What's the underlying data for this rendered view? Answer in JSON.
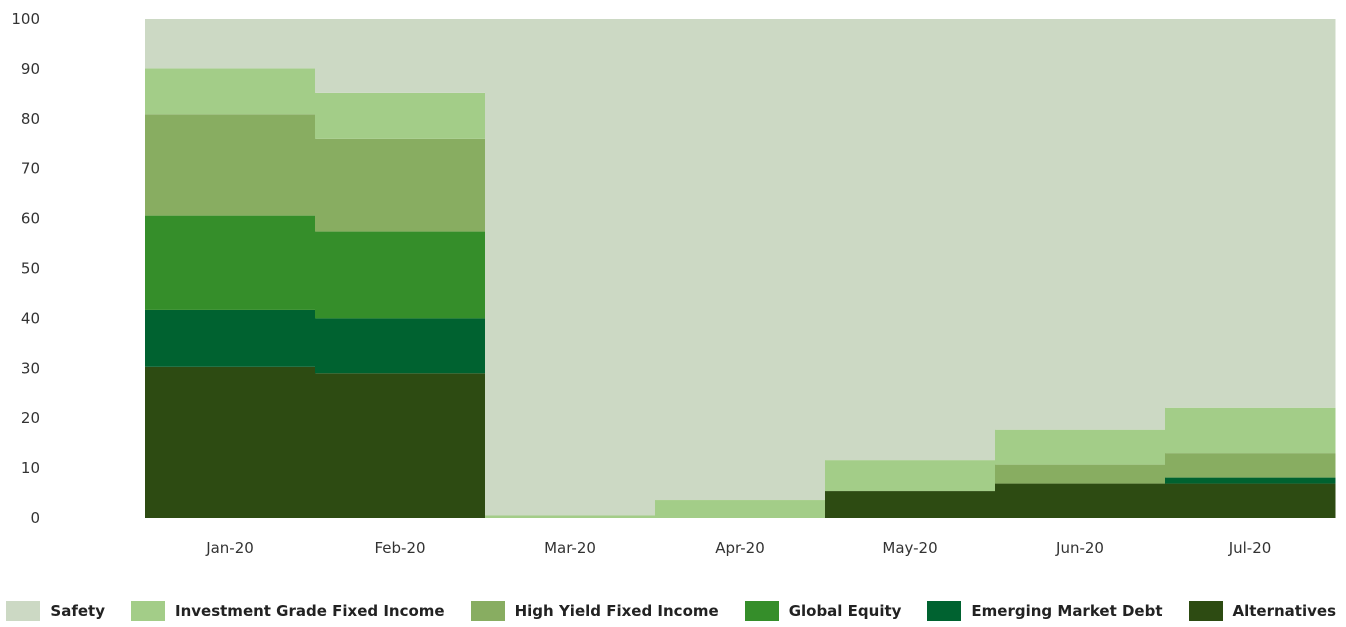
{
  "chart_data": {
    "type": "bar",
    "stacked": true,
    "categories": [
      "Jan-20",
      "Feb-20",
      "Mar-20",
      "Apr-20",
      "May-20",
      "Jun-20",
      "Jul-20"
    ],
    "ylim": [
      0,
      100
    ],
    "yticks": [
      0,
      10,
      20,
      30,
      40,
      50,
      60,
      70,
      80,
      90,
      100
    ],
    "series": [
      {
        "name": "Alternatives",
        "color": "#2d4b12",
        "values": [
          30.3,
          29,
          0,
          0,
          5.4,
          6.9,
          6.9
        ]
      },
      {
        "name": "Emerging Market Debt",
        "color": "#006230",
        "values": [
          11.4,
          11,
          0,
          0,
          0,
          0,
          1.2
        ]
      },
      {
        "name": "Global Equity",
        "color": "#358e2a",
        "values": [
          18.9,
          17.4,
          0,
          0,
          0,
          0,
          0
        ]
      },
      {
        "name": "High Yield Fixed Income",
        "color": "#88ad61",
        "values": [
          20.3,
          18.6,
          0,
          0,
          0,
          3.8,
          4.9
        ]
      },
      {
        "name": "Investment Grade Fixed Income",
        "color": "#a3cd88",
        "values": [
          9.2,
          9.2,
          0.5,
          3.6,
          6.2,
          7.0,
          9.1
        ]
      },
      {
        "name": "Safety",
        "color": "#ccd9c4",
        "values": [
          9.9,
          14.8,
          99.5,
          96.4,
          88.4,
          82.3,
          77.9
        ]
      }
    ],
    "legend": {
      "position": "bottom-right",
      "order": [
        "Safety",
        "Investment Grade Fixed Income",
        "High Yield Fixed Income",
        "Global Equity",
        "Emerging Market Debt",
        "Alternatives"
      ]
    }
  }
}
